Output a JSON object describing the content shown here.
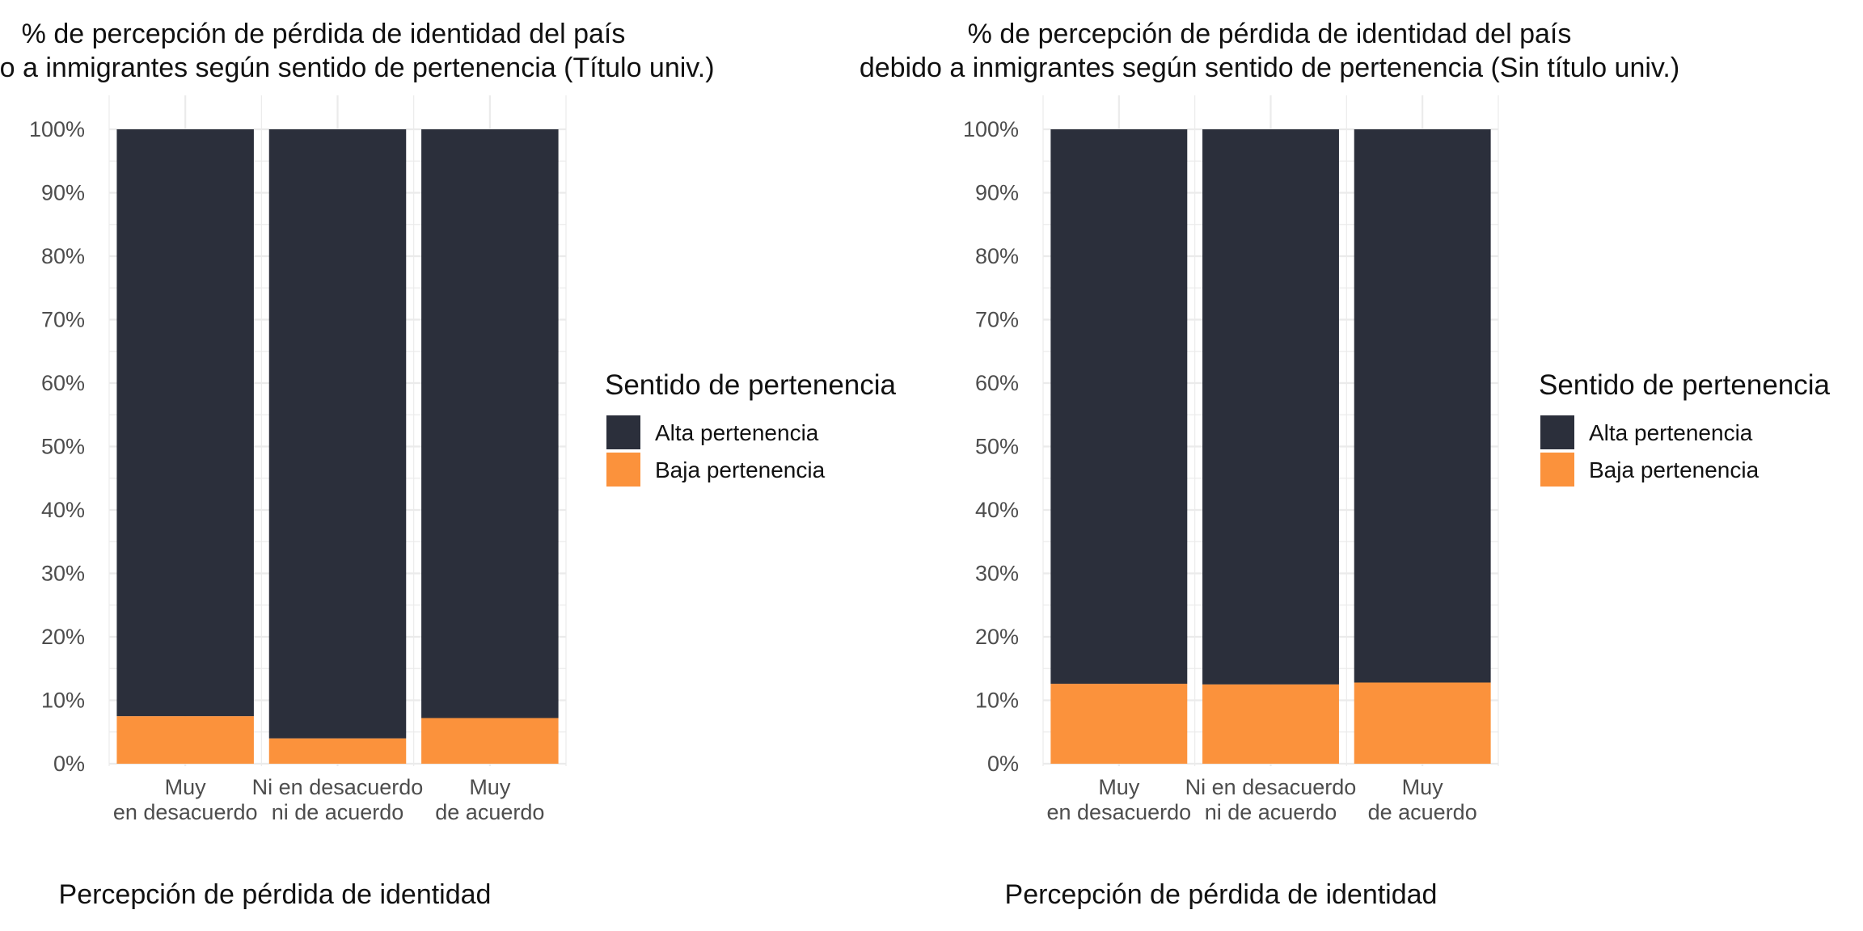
{
  "chart_data": [
    {
      "type": "bar",
      "stacked": true,
      "percent": true,
      "title": [
        "% de percepción de pérdida de identidad del país",
        "debido a inmigrantes según sentido de pertenencia (Título univ.)"
      ],
      "xlabel": "Percepción de pérdida de identidad",
      "ylabel": "",
      "ylim": [
        0,
        100
      ],
      "yticks": [
        "0%",
        "10%",
        "20%",
        "30%",
        "40%",
        "50%",
        "60%",
        "70%",
        "80%",
        "90%",
        "100%"
      ],
      "categories": [
        [
          "Muy",
          "en desacuerdo"
        ],
        [
          "Ni en desacuerdo",
          "ni de acuerdo"
        ],
        [
          "Muy",
          "de acuerdo"
        ]
      ],
      "series": [
        {
          "name": "Alta pertenencia",
          "color": "#2b2f3b",
          "values": [
            92.5,
            96.0,
            92.8
          ]
        },
        {
          "name": "Baja pertenencia",
          "color": "#fb923c",
          "values": [
            7.5,
            4.0,
            7.2
          ]
        }
      ],
      "legend": {
        "title": "Sentido de pertenencia",
        "position": "right"
      },
      "grid": true
    },
    {
      "type": "bar",
      "stacked": true,
      "percent": true,
      "title": [
        "% de percepción de pérdida de identidad del país",
        "debido a inmigrantes según sentido de pertenencia (Sin título univ.)"
      ],
      "xlabel": "Percepción de pérdida de identidad",
      "ylabel": "",
      "ylim": [
        0,
        100
      ],
      "yticks": [
        "0%",
        "10%",
        "20%",
        "30%",
        "40%",
        "50%",
        "60%",
        "70%",
        "80%",
        "90%",
        "100%"
      ],
      "categories": [
        [
          "Muy",
          "en desacuerdo"
        ],
        [
          "Ni en desacuerdo",
          "ni de acuerdo"
        ],
        [
          "Muy",
          "de acuerdo"
        ]
      ],
      "series": [
        {
          "name": "Alta pertenencia",
          "color": "#2b2f3b",
          "values": [
            87.4,
            87.5,
            87.2
          ]
        },
        {
          "name": "Baja pertenencia",
          "color": "#fb923c",
          "values": [
            12.6,
            12.5,
            12.8
          ]
        }
      ],
      "legend": {
        "title": "Sentido de pertenencia",
        "position": "right"
      },
      "grid": true
    }
  ]
}
